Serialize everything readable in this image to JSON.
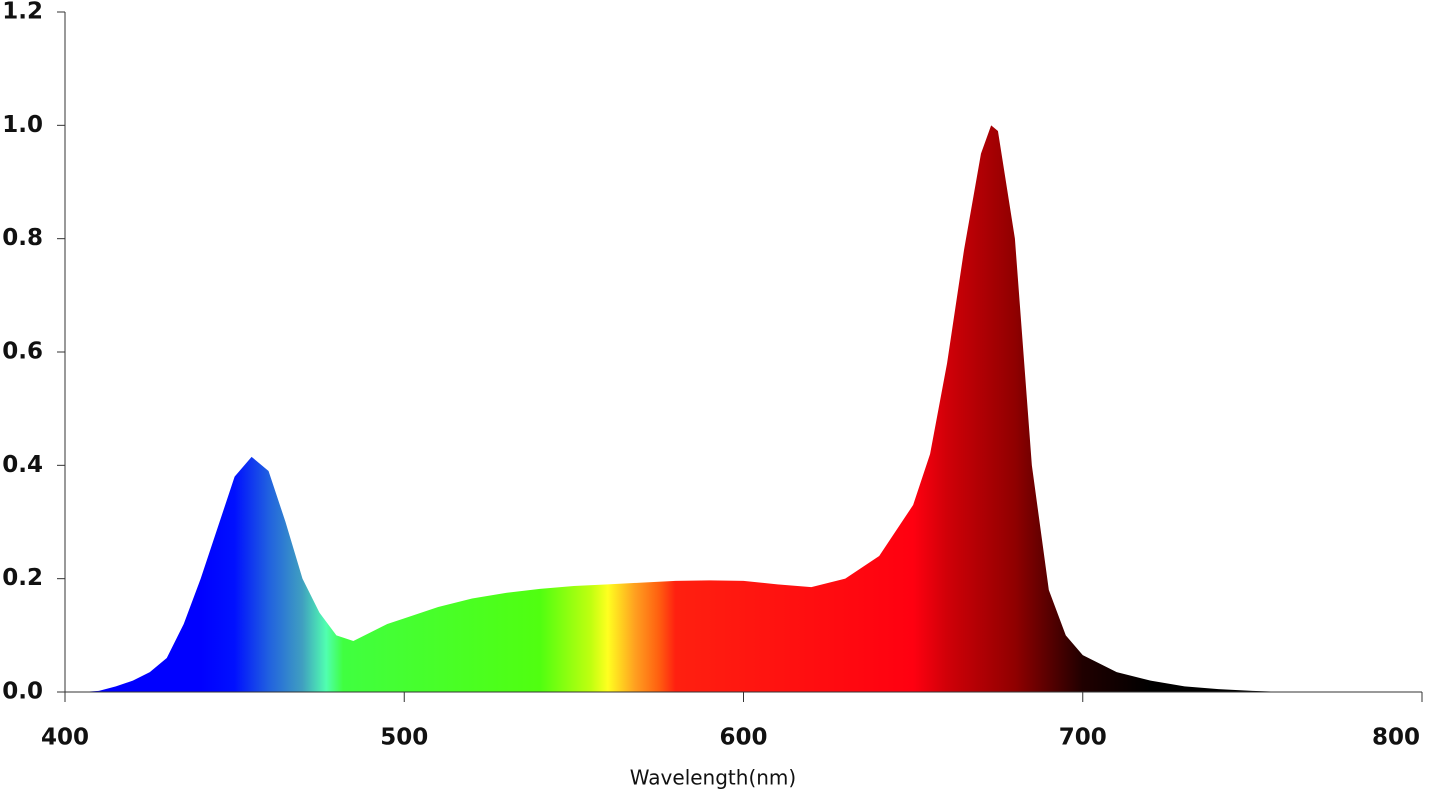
{
  "chart_data": {
    "type": "area",
    "x_label": "Wavelength(nm)",
    "x": [
      400,
      405,
      410,
      415,
      420,
      425,
      430,
      435,
      440,
      445,
      450,
      455,
      460,
      465,
      470,
      475,
      480,
      485,
      490,
      495,
      500,
      510,
      520,
      530,
      540,
      550,
      560,
      570,
      580,
      590,
      600,
      610,
      620,
      630,
      640,
      650,
      655,
      660,
      665,
      670,
      673,
      675,
      680,
      685,
      690,
      695,
      700,
      710,
      720,
      730,
      740,
      750,
      760
    ],
    "values": [
      0,
      0,
      0.002,
      0.01,
      0.02,
      0.035,
      0.06,
      0.12,
      0.2,
      0.29,
      0.38,
      0.415,
      0.39,
      0.3,
      0.2,
      0.14,
      0.1,
      0.09,
      0.105,
      0.12,
      0.13,
      0.15,
      0.165,
      0.175,
      0.182,
      0.187,
      0.19,
      0.193,
      0.196,
      0.197,
      0.196,
      0.19,
      0.185,
      0.2,
      0.24,
      0.33,
      0.42,
      0.58,
      0.78,
      0.95,
      1.0,
      0.99,
      0.8,
      0.4,
      0.18,
      0.1,
      0.065,
      0.035,
      0.02,
      0.01,
      0.005,
      0.002,
      0
    ],
    "xlim": [
      400,
      800
    ],
    "xticks": [
      400,
      500,
      600,
      700,
      800
    ],
    "ylim": [
      0,
      1.2
    ],
    "yticks": [
      {
        "value": 0,
        "label": "0.0"
      },
      0.2,
      0.4,
      0.6,
      0.8,
      {
        "value": 1,
        "label": "1.0"
      },
      1.2
    ]
  }
}
